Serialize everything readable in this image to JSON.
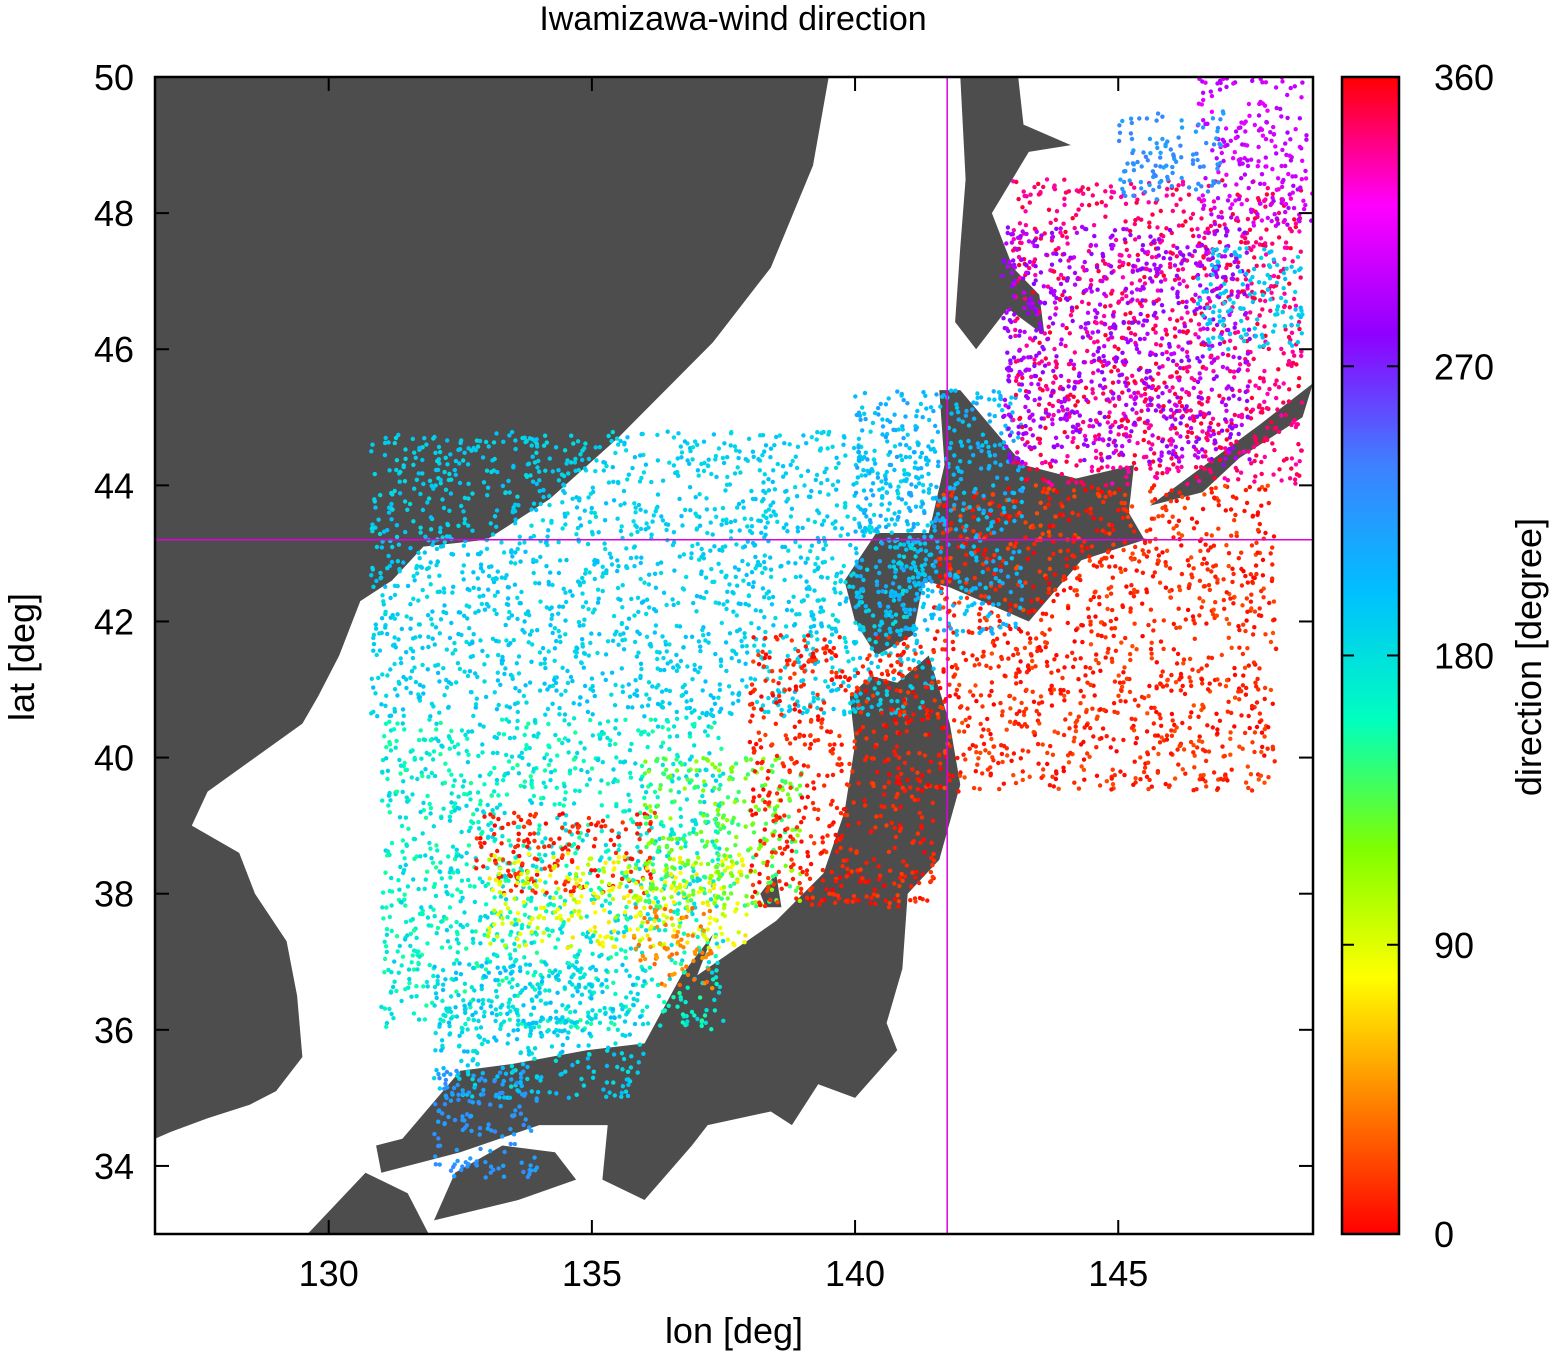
{
  "chart_data": {
    "type": "scatter",
    "title": "Iwamizawa-wind direction",
    "xlabel": "lon [deg]",
    "ylabel": "lat [deg]",
    "xlim": [
      126.7,
      148.7
    ],
    "ylim": [
      33.0,
      50.0
    ],
    "x_ticks": [
      130,
      135,
      140,
      145
    ],
    "y_ticks": [
      34,
      36,
      38,
      40,
      42,
      44,
      46,
      48,
      50
    ],
    "grid": false,
    "colorbar": {
      "label": "direction [degree]",
      "range": [
        0,
        360
      ],
      "ticks": [
        0,
        90,
        180,
        270,
        360
      ],
      "colormap": [
        "#ff0000",
        "#ff7f00",
        "#ffff00",
        "#7fff00",
        "#00ffbf",
        "#00bfff",
        "#3f7fff",
        "#8f00ff",
        "#ff00ff",
        "#ff0000"
      ]
    },
    "crosshair": {
      "lon": 141.75,
      "lat": 43.2,
      "color": "#e000e0"
    },
    "land_color": "#4d4d4d",
    "scatter_regions": [
      {
        "name": "sea-of-japan-north",
        "lon": [
          130.8,
          141.5
        ],
        "lat": [
          40.6,
          44.8
        ],
        "direction": [
          180,
          200
        ]
      },
      {
        "name": "sea-of-japan-central",
        "lon": [
          131.0,
          137.5
        ],
        "lat": [
          36.0,
          40.6
        ],
        "direction": [
          150,
          190
        ]
      },
      {
        "name": "sea-of-japan-south",
        "lon": [
          132.0,
          136.0
        ],
        "lat": [
          35.0,
          37.0
        ],
        "direction": [
          175,
          205
        ]
      },
      {
        "name": "west-red-patch",
        "lon": [
          132.8,
          136.2
        ],
        "lat": [
          38.0,
          39.2
        ],
        "direction": [
          0,
          20
        ]
      },
      {
        "name": "yellow-band",
        "lon": [
          133.0,
          138.0
        ],
        "lat": [
          37.2,
          38.6
        ],
        "direction": [
          70,
          110
        ]
      },
      {
        "name": "noto-orange",
        "lon": [
          135.8,
          137.3
        ],
        "lat": [
          36.6,
          37.8
        ],
        "direction": [
          30,
          55
        ]
      },
      {
        "name": "central-green",
        "lon": [
          136.0,
          139.0
        ],
        "lat": [
          37.8,
          40.0
        ],
        "direction": [
          110,
          150
        ]
      },
      {
        "name": "tohoku-red",
        "lon": [
          138.0,
          141.5
        ],
        "lat": [
          37.8,
          41.8
        ],
        "direction": [
          0,
          20
        ]
      },
      {
        "name": "pacific-red",
        "lon": [
          141.5,
          148.0
        ],
        "lat": [
          39.5,
          44.0
        ],
        "direction": [
          0,
          25
        ]
      },
      {
        "name": "hokkaido-cyan",
        "lon": [
          140.0,
          143.2
        ],
        "lat": [
          41.8,
          45.4
        ],
        "direction": [
          190,
          220
        ]
      },
      {
        "name": "okhotsk-crimson",
        "lon": [
          143.0,
          148.5
        ],
        "lat": [
          44.0,
          48.5
        ],
        "direction": [
          330,
          355
        ]
      },
      {
        "name": "okhotsk-purple",
        "lon": [
          142.8,
          147.5
        ],
        "lat": [
          44.3,
          47.8
        ],
        "direction": [
          275,
          300
        ]
      },
      {
        "name": "north-magenta",
        "lon": [
          146.5,
          148.7
        ],
        "lat": [
          47.8,
          50.0
        ],
        "direction": [
          290,
          315
        ]
      },
      {
        "name": "north-blue",
        "lon": [
          145.0,
          147.0
        ],
        "lat": [
          48.2,
          49.5
        ],
        "direction": [
          215,
          240
        ]
      },
      {
        "name": "east-cyan-arc",
        "lon": [
          146.5,
          148.5
        ],
        "lat": [
          46.0,
          47.5
        ],
        "direction": [
          185,
          200
        ]
      },
      {
        "name": "kyushu-blue",
        "lon": [
          132.0,
          134.0
        ],
        "lat": [
          33.8,
          35.4
        ],
        "direction": [
          215,
          235
        ]
      }
    ]
  }
}
